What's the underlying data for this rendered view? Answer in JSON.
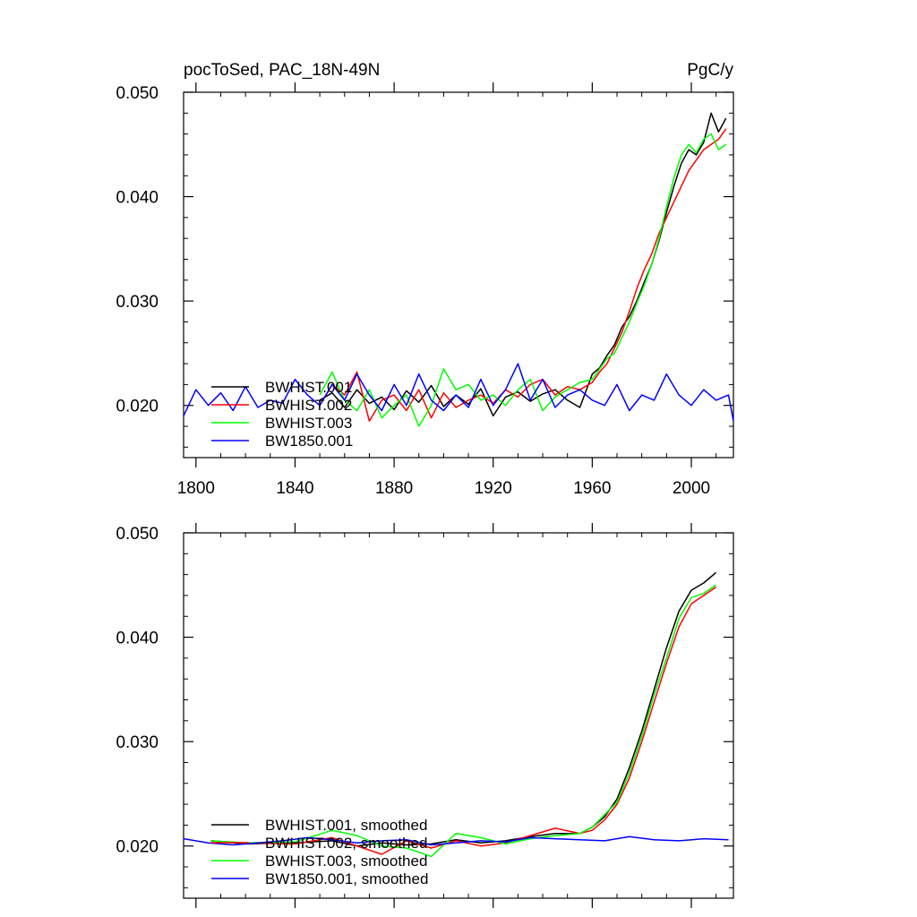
{
  "header": {
    "left": "pocToSed, PAC_18N-49N",
    "right": "PgC/y"
  },
  "chart_data": [
    {
      "type": "line",
      "panel": "annual",
      "title": "pocToSed, PAC_18N-49N",
      "units": "PgC/y",
      "xlim": [
        1795,
        2017
      ],
      "ylim": [
        0.015,
        0.05
      ],
      "x_ticks": [
        1800,
        1840,
        1880,
        1920,
        1960,
        2000
      ],
      "x_tick_labels": [
        "1800",
        "1840",
        "1880",
        "1920",
        "1960",
        "2000"
      ],
      "y_ticks": [
        0.02,
        0.03,
        0.04,
        0.05
      ],
      "y_tick_labels": [
        "0.020",
        "0.030",
        "0.040",
        "0.050"
      ],
      "legend_position": "bottom-left",
      "series": [
        {
          "name": "BWHIST.001",
          "color": "#000000",
          "x": [
            1850,
            1855,
            1860,
            1865,
            1870,
            1875,
            1880,
            1885,
            1890,
            1895,
            1900,
            1905,
            1910,
            1915,
            1920,
            1925,
            1930,
            1935,
            1940,
            1945,
            1950,
            1955,
            1960,
            1963,
            1966,
            1969,
            1972,
            1975,
            1978,
            1981,
            1984,
            1987,
            1990,
            1993,
            1996,
            1999,
            2002,
            2005,
            2008,
            2011,
            2014
          ],
          "y": [
            0.0205,
            0.0212,
            0.0198,
            0.0215,
            0.0202,
            0.0208,
            0.0196,
            0.0214,
            0.0203,
            0.0219,
            0.0199,
            0.021,
            0.0201,
            0.0216,
            0.019,
            0.0208,
            0.0213,
            0.0204,
            0.0211,
            0.0215,
            0.0205,
            0.0198,
            0.023,
            0.0236,
            0.0248,
            0.0258,
            0.0275,
            0.0285,
            0.03,
            0.0318,
            0.0335,
            0.0358,
            0.0385,
            0.041,
            0.0432,
            0.0445,
            0.044,
            0.0452,
            0.048,
            0.0462,
            0.0475
          ]
        },
        {
          "name": "BWHIST.002",
          "color": "#ff0000",
          "x": [
            1850,
            1855,
            1860,
            1865,
            1870,
            1875,
            1880,
            1885,
            1890,
            1895,
            1900,
            1905,
            1910,
            1915,
            1920,
            1925,
            1930,
            1935,
            1940,
            1945,
            1950,
            1955,
            1960,
            1963,
            1966,
            1969,
            1972,
            1975,
            1978,
            1981,
            1984,
            1987,
            1990,
            1993,
            1996,
            1999,
            2002,
            2005,
            2008,
            2011,
            2014
          ],
          "y": [
            0.02,
            0.022,
            0.021,
            0.0232,
            0.0185,
            0.0205,
            0.021,
            0.0195,
            0.0215,
            0.0188,
            0.0212,
            0.0198,
            0.0205,
            0.021,
            0.0202,
            0.0215,
            0.0208,
            0.022,
            0.0225,
            0.021,
            0.0218,
            0.0215,
            0.0222,
            0.0232,
            0.024,
            0.0255,
            0.027,
            0.029,
            0.0312,
            0.033,
            0.0345,
            0.0365,
            0.038,
            0.0395,
            0.041,
            0.0425,
            0.0435,
            0.0445,
            0.045,
            0.0455,
            0.0465
          ]
        },
        {
          "name": "BWHIST.003",
          "color": "#00ff00",
          "x": [
            1850,
            1855,
            1860,
            1865,
            1870,
            1875,
            1880,
            1885,
            1890,
            1895,
            1900,
            1905,
            1910,
            1915,
            1920,
            1925,
            1930,
            1935,
            1940,
            1945,
            1950,
            1955,
            1960,
            1963,
            1966,
            1969,
            1972,
            1975,
            1978,
            1981,
            1984,
            1987,
            1990,
            1993,
            1996,
            1999,
            2002,
            2005,
            2008,
            2011,
            2014
          ],
          "y": [
            0.021,
            0.0232,
            0.0205,
            0.0195,
            0.0215,
            0.0188,
            0.02,
            0.021,
            0.018,
            0.02,
            0.0235,
            0.0215,
            0.022,
            0.0205,
            0.021,
            0.02,
            0.0215,
            0.0225,
            0.0195,
            0.0208,
            0.0215,
            0.0222,
            0.0225,
            0.0235,
            0.0245,
            0.025,
            0.0265,
            0.028,
            0.0298,
            0.0315,
            0.0335,
            0.036,
            0.039,
            0.0418,
            0.044,
            0.045,
            0.0442,
            0.0455,
            0.046,
            0.0445,
            0.045
          ]
        },
        {
          "name": "BW1850.001",
          "color": "#0000ff",
          "x": [
            1795,
            1800,
            1805,
            1810,
            1815,
            1820,
            1825,
            1830,
            1835,
            1840,
            1845,
            1850,
            1855,
            1860,
            1865,
            1870,
            1875,
            1880,
            1885,
            1890,
            1895,
            1900,
            1905,
            1910,
            1915,
            1920,
            1925,
            1930,
            1935,
            1940,
            1945,
            1950,
            1955,
            1960,
            1965,
            1970,
            1975,
            1980,
            1985,
            1990,
            1995,
            2000,
            2005,
            2010,
            2015,
            2017
          ],
          "y": [
            0.019,
            0.0215,
            0.02,
            0.0212,
            0.0195,
            0.0218,
            0.0198,
            0.0205,
            0.0202,
            0.0225,
            0.021,
            0.02,
            0.022,
            0.0205,
            0.023,
            0.021,
            0.0195,
            0.022,
            0.02,
            0.023,
            0.0205,
            0.0195,
            0.021,
            0.0198,
            0.0225,
            0.02,
            0.0215,
            0.024,
            0.0205,
            0.0225,
            0.0198,
            0.021,
            0.0215,
            0.0205,
            0.02,
            0.022,
            0.0195,
            0.021,
            0.0205,
            0.023,
            0.021,
            0.02,
            0.0215,
            0.0205,
            0.021,
            0.0185
          ]
        }
      ]
    },
    {
      "type": "line",
      "panel": "smoothed",
      "xlim": [
        1795,
        2017
      ],
      "ylim": [
        0.015,
        0.05
      ],
      "x_ticks": [
        1800,
        1840,
        1880,
        1920,
        1960,
        2000
      ],
      "y_ticks": [
        0.02,
        0.03,
        0.04,
        0.05
      ],
      "y_tick_labels": [
        "0.020",
        "0.030",
        "0.040",
        "0.050"
      ],
      "legend_position": "bottom-left",
      "series": [
        {
          "name": "BWHIST.001, smoothed",
          "color": "#000000",
          "x": [
            1806,
            1820,
            1840,
            1855,
            1865,
            1875,
            1885,
            1895,
            1905,
            1915,
            1925,
            1935,
            1945,
            1955,
            1960,
            1965,
            1970,
            1975,
            1980,
            1985,
            1990,
            1995,
            2000,
            2005,
            2010
          ],
          "y": [
            0.0205,
            0.0202,
            0.0203,
            0.0205,
            0.02,
            0.0203,
            0.0201,
            0.0202,
            0.0206,
            0.0203,
            0.0205,
            0.0209,
            0.0212,
            0.0212,
            0.0218,
            0.0228,
            0.0245,
            0.0275,
            0.031,
            0.035,
            0.039,
            0.0425,
            0.0445,
            0.0452,
            0.0462
          ]
        },
        {
          "name": "BWHIST.002, smoothed",
          "color": "#ff0000",
          "x": [
            1806,
            1820,
            1840,
            1855,
            1865,
            1875,
            1885,
            1895,
            1905,
            1915,
            1925,
            1935,
            1945,
            1955,
            1960,
            1965,
            1970,
            1975,
            1980,
            1985,
            1990,
            1995,
            2000,
            2005,
            2010
          ],
          "y": [
            0.0205,
            0.0203,
            0.0202,
            0.0208,
            0.02,
            0.0192,
            0.0205,
            0.0198,
            0.0205,
            0.02,
            0.0203,
            0.021,
            0.0217,
            0.0212,
            0.0215,
            0.0225,
            0.024,
            0.0265,
            0.03,
            0.0338,
            0.0375,
            0.041,
            0.0432,
            0.044,
            0.0448
          ]
        },
        {
          "name": "BWHIST.003, smoothed",
          "color": "#00ff00",
          "x": [
            1806,
            1820,
            1840,
            1855,
            1865,
            1875,
            1885,
            1895,
            1905,
            1915,
            1925,
            1935,
            1945,
            1955,
            1960,
            1965,
            1970,
            1975,
            1980,
            1985,
            1990,
            1995,
            2000,
            2005,
            2010
          ],
          "y": [
            0.0205,
            0.0203,
            0.0204,
            0.0215,
            0.021,
            0.02,
            0.0198,
            0.019,
            0.0212,
            0.0208,
            0.0202,
            0.0207,
            0.021,
            0.0212,
            0.0218,
            0.023,
            0.0242,
            0.027,
            0.0305,
            0.0345,
            0.038,
            0.0418,
            0.0438,
            0.0442,
            0.045
          ]
        },
        {
          "name": "BW1850.001, smoothed",
          "color": "#0000ff",
          "x": [
            1795,
            1805,
            1815,
            1825,
            1835,
            1845,
            1855,
            1865,
            1875,
            1885,
            1895,
            1905,
            1915,
            1925,
            1935,
            1945,
            1955,
            1965,
            1975,
            1985,
            1995,
            2005,
            2015
          ],
          "y": [
            0.0207,
            0.0203,
            0.0201,
            0.0203,
            0.0205,
            0.0208,
            0.0206,
            0.0203,
            0.0205,
            0.0206,
            0.0201,
            0.0203,
            0.0205,
            0.0204,
            0.0208,
            0.0207,
            0.0206,
            0.0205,
            0.0209,
            0.0206,
            0.0205,
            0.0207,
            0.0206
          ]
        }
      ]
    }
  ]
}
